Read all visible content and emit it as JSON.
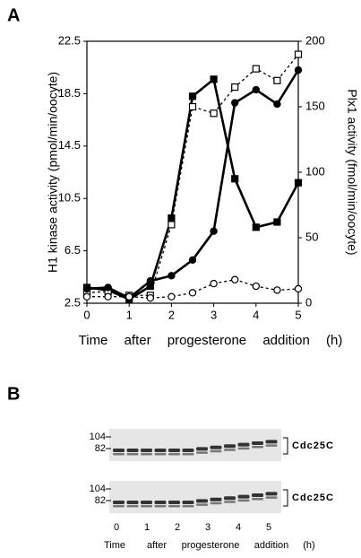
{
  "chart_data": {
    "type": "line",
    "panel_label": "A",
    "xlabel": "Time after progesterone addition (h)",
    "ylabel": "H1 kinase activity (pmol/min/oocyte)",
    "y2label": "Plx1 activity (fmol/min/oocyte)",
    "x": [
      0,
      0.5,
      1,
      1.5,
      2,
      2.5,
      3,
      3.5,
      4,
      4.5,
      5
    ],
    "xlim": [
      0,
      5
    ],
    "xticks": [
      0,
      1,
      2,
      3,
      4,
      5
    ],
    "ylim": [
      2.5,
      22.5
    ],
    "yticks": [
      2.5,
      6.5,
      10.5,
      14.5,
      18.5,
      22.5
    ],
    "y2lim": [
      0,
      200
    ],
    "y2ticks": [
      0,
      50,
      100,
      150,
      200
    ],
    "series": [
      {
        "color": "#000000",
        "marker": "square",
        "filled": true,
        "dashed": false,
        "axis": "y",
        "values": [
          3.7,
          3.5,
          2.8,
          3.8,
          9.0,
          18.3,
          19.6,
          12.0,
          8.3,
          8.7,
          11.7
        ]
      },
      {
        "color": "#000000",
        "marker": "square",
        "filled": false,
        "dashed": true,
        "axis": "y",
        "values": [
          3.3,
          3.4,
          3.1,
          3.1,
          8.5,
          17.5,
          17.0,
          19.0,
          20.4,
          19.5,
          21.5
        ]
      },
      {
        "color": "#000000",
        "marker": "circle",
        "filled": true,
        "dashed": false,
        "axis": "y2",
        "values": [
          11,
          12,
          4,
          17,
          21,
          33,
          55,
          153,
          163,
          152,
          178
        ]
      },
      {
        "color": "#000000",
        "marker": "circle",
        "filled": false,
        "dashed": true,
        "axis": "y2",
        "values": [
          5,
          5,
          5,
          4,
          5,
          8,
          15,
          18,
          13,
          10,
          11
        ]
      }
    ]
  },
  "panel_b": {
    "label": "B",
    "blots": [
      {
        "markers": [
          "104",
          "82"
        ],
        "protein": "Cdc25C"
      },
      {
        "markers": [
          "104",
          "82"
        ],
        "protein": "Cdc25C"
      }
    ],
    "lanes": [
      "0",
      "1",
      "2",
      "3",
      "4",
      "5"
    ],
    "xlabel_words": [
      "Time",
      "after",
      "progesterone",
      "addition",
      "(h)"
    ]
  }
}
